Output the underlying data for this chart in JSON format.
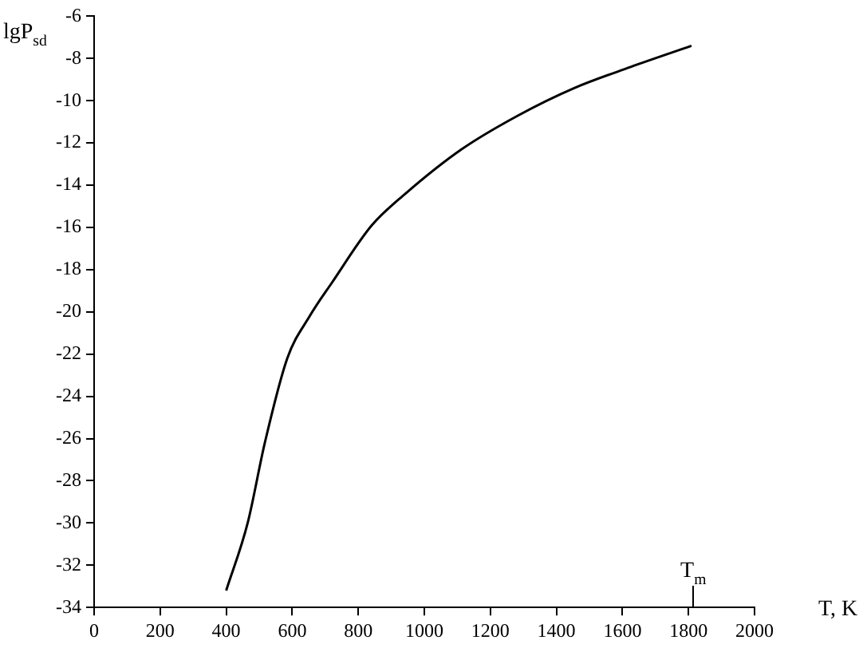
{
  "chart_data": {
    "type": "line",
    "xlabel": "T, K",
    "ylabel": "lgP$_{sd}$",
    "x": [
      400,
      465,
      517,
      585,
      653,
      721,
      841,
      943,
      1113,
      1284,
      1454,
      1625,
      1809
    ],
    "series": [
      {
        "color": "#000000",
        "values": [
          -33.2,
          -30.0,
          -26.2,
          -22.2,
          -20.2,
          -18.6,
          -15.9,
          -14.4,
          -12.3,
          -10.7,
          -9.4,
          -8.4,
          -7.4
        ]
      }
    ],
    "xlim": [
      0,
      2000
    ],
    "xticks": [
      0,
      200,
      400,
      600,
      800,
      1000,
      1200,
      1400,
      1600,
      1800,
      2000
    ],
    "ylim": [
      -34,
      -6
    ],
    "yticks": [
      -34,
      -32,
      -30,
      -28,
      -26,
      -24,
      -22,
      -20,
      -18,
      -16,
      -14,
      -12,
      -10,
      -8,
      -6
    ],
    "grid": false,
    "legend": false,
    "marker": "none",
    "line_style": "solid",
    "annotations": [
      "T$_{m}$"
    ]
  }
}
